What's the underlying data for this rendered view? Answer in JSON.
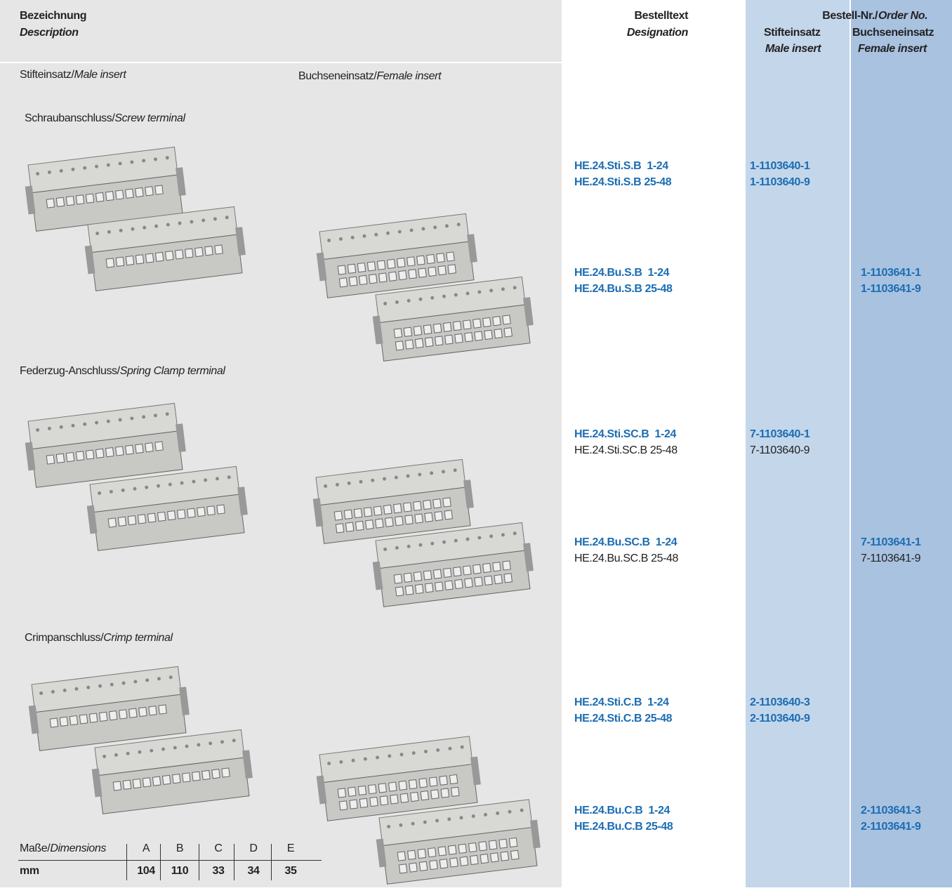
{
  "header": {
    "description": {
      "de": "Bezeichnung",
      "en": "Description"
    },
    "designation": {
      "de": "Bestelltext",
      "en": "Designation"
    },
    "order_no": {
      "de": "Bestell-Nr./",
      "en": "Order No."
    },
    "male": {
      "de": "Stifteinsatz",
      "en": "Male insert"
    },
    "female": {
      "de": "Buchseneinsatz",
      "en": "Female insert"
    }
  },
  "column_labels": {
    "male": {
      "de": "Stifteinsatz/",
      "en": "Male insert"
    },
    "female": {
      "de": "Buchseneinsatz/",
      "en": "Female insert"
    }
  },
  "sections": [
    {
      "title": {
        "de": "Schraubanschluss/",
        "en": "Screw terminal"
      },
      "male_designations": [
        "HE.24.Sti.S.B  1-24",
        "HE.24.Sti.S.B 25-48"
      ],
      "male_order": [
        "1-1103640-1",
        "1-1103640-9"
      ],
      "female_designations": [
        "HE.24.Bu.S.B  1-24",
        "HE.24.Bu.S.B 25-48"
      ],
      "female_order": [
        "1-1103641-1",
        "1-1103641-9"
      ]
    },
    {
      "title": {
        "de": "Federzug-Anschluss/",
        "en": "Spring Clamp terminal"
      },
      "male_designations": [
        "HE.24.Sti.SC.B  1-24",
        "HE.24.Sti.SC.B 25-48"
      ],
      "male_order": [
        "7-1103640-1",
        "7-1103640-9"
      ],
      "female_designations": [
        "HE.24.Bu.SC.B  1-24",
        "HE.24.Bu.SC.B 25-48"
      ],
      "female_order": [
        "7-1103641-1",
        "7-1103641-9"
      ]
    },
    {
      "title": {
        "de": "Crimpanschluss/",
        "en": "Crimp terminal"
      },
      "male_designations": [
        "HE.24.Sti.C.B  1-24",
        "HE.24.Sti.C.B 25-48"
      ],
      "male_order": [
        "2-1103640-3",
        "2-1103640-9"
      ],
      "female_designations": [
        "HE.24.Bu.C.B  1-24",
        "HE.24.Bu.C.B 25-48"
      ],
      "female_order": [
        "2-1103641-3",
        "2-1103641-9"
      ]
    }
  ],
  "dimensions": {
    "label": {
      "de": "Maße/",
      "en": "Dimensions"
    },
    "unit": "mm",
    "columns": [
      "A",
      "B",
      "C",
      "D",
      "E"
    ],
    "values": [
      104,
      110,
      33,
      34,
      35
    ]
  }
}
